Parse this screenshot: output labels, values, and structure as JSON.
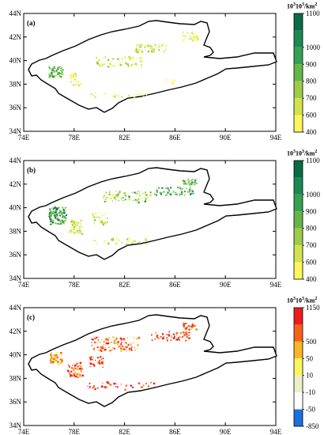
{
  "panels": [
    {
      "label": "(a)",
      "colorbar": {
        "unit": {
          "base1": "10",
          "exp1": "3",
          "base2": "10",
          "exp2": "3",
          "per": "/km",
          "exp3": "2"
        },
        "ticks": [
          "1100",
          "1000",
          "900",
          "800",
          "700",
          "600",
          "400"
        ],
        "colors": [
          "#0b6b47",
          "#1b8a55",
          "#35a253",
          "#66b548",
          "#9ccc4a",
          "#d2e24e",
          "#fbf65c"
        ]
      }
    },
    {
      "label": "(b)",
      "colorbar": {
        "unit": {
          "base1": "10",
          "exp1": "3",
          "base2": "10",
          "exp2": "3",
          "per": "/km",
          "exp3": "2"
        },
        "ticks": [
          "1100",
          "1000",
          "900",
          "800",
          "700",
          "600",
          "400"
        ],
        "colors": [
          "#0b6b47",
          "#1b8a55",
          "#35a253",
          "#66b548",
          "#9ccc4a",
          "#d2e24e",
          "#fbf65c"
        ]
      }
    },
    {
      "label": "(c)",
      "colorbar": {
        "unit": {
          "base1": "10",
          "exp1": "3",
          "base2": "10",
          "exp2": "3",
          "per": "/km",
          "exp3": "2"
        },
        "ticks": [
          "1150",
          "500",
          "50",
          "10",
          "-10",
          "-50",
          "-850"
        ],
        "colors": [
          "#ee1c1c",
          "#f6621a",
          "#fab52a",
          "#fbf65c",
          "#e8f1c8",
          "#ffffff",
          "#1e6fd9"
        ]
      }
    }
  ],
  "axes": {
    "x_ticks": [
      "74E",
      "78E",
      "82E",
      "86E",
      "90E",
      "94E"
    ],
    "y_ticks": [
      "44N",
      "42N",
      "40N",
      "38N",
      "36N",
      "34N"
    ]
  }
}
